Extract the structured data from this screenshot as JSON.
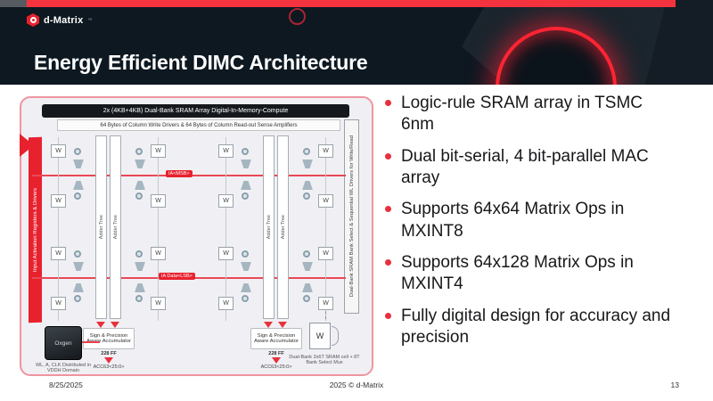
{
  "header": {
    "logo_text": "d-Matrix",
    "logo_tm": "™",
    "title": "Energy Efficient DIMC Architecture",
    "accent_color": "#f5333f",
    "background_color": "#0d1821"
  },
  "bullets": [
    "Logic-rule SRAM array in TSMC 6nm",
    "Dual bit-serial, 4 bit-parallel MAC array",
    "Supports 64x64 Matrix Ops in MXINT8",
    "Supports 64x128 Matrix Ops in MXINT4",
    "Fully digital design for accuracy and precision"
  ],
  "diagram": {
    "title": "2x (4KB+4KB) Dual-Bank SRAM Array Digital-In-Memory-Compute",
    "subtitle": "64 Bytes of Column Write Drivers & 64 Bytes of Column Read-out Sense Amplifiers",
    "left_ribbon": "Input Activation Registers & Drivers",
    "right_bar": "Dual-Bank SRAM Bank Select & Sequential WL Drivers for Write/Read",
    "bus_label_1": "IA<MSB>",
    "bus_label_2": "IA Data<LSB>",
    "w_label": "W",
    "adder_tree_label": "Adder Tree",
    "accumulator_label": "Sign & Precision Aware Accumulator",
    "acc_ff_label": "228 FF",
    "acc_out_label": "ACC63<25:0>",
    "chip_label": "Oxgen",
    "chip_caption": "WL, A, CLK Distributed in VDDH Domain",
    "cell_caption": "Dual-Bank 2x6T SRAM cell + 8T Bank Select Mux",
    "border_color": "#ef95a0",
    "accent_color": "#e8212e"
  },
  "footer": {
    "date": "8/25/2025",
    "copyright": "2025 © d-Matrix",
    "page": "13"
  }
}
